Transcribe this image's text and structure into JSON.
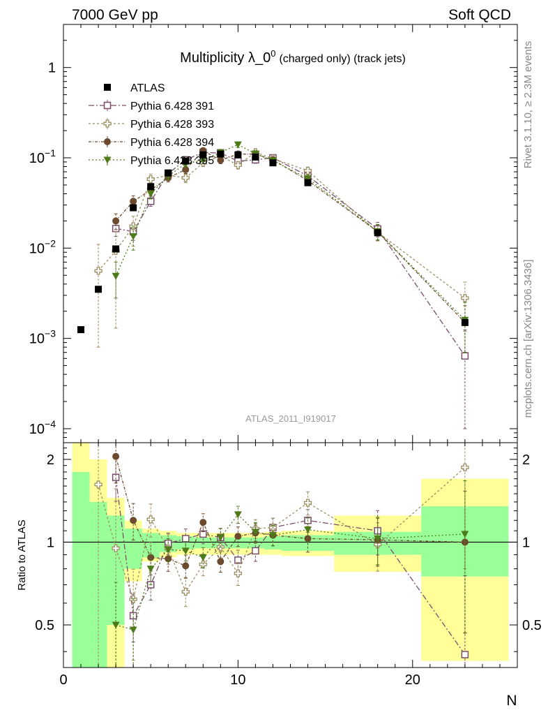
{
  "header": {
    "left": "7000 GeV pp",
    "right": "Soft QCD"
  },
  "title": "Multiplicity λ_0",
  "title_sup": "0",
  "title_suffix": "(charged only) (track jets)",
  "watermark": "ATLAS_2011_I919017",
  "side_top": "Rivet 3.1.10, ≥ 2.3M events",
  "side_bottom": "mcplots.cern.ch [arXiv:1306.3436]",
  "ratio_ylabel": "Ratio to ATLAS",
  "xlabel": "N",
  "colors": {
    "atlas": "#000000",
    "p391": "#7a4d6b",
    "p393": "#9a8d60",
    "p394": "#6b4a2e",
    "p395": "#4e7a1a",
    "band_inner": "#99ff99",
    "band_outer": "#ffff99"
  },
  "chart_data": {
    "type": "scatter",
    "xlim": [
      0,
      26
    ],
    "ylim_main": [
      7e-05,
      3
    ],
    "ylim_ratio": [
      0.35,
      2.3
    ],
    "log_y_main": true,
    "log_y_ratio": true,
    "x_ticks": [
      0,
      10,
      20
    ],
    "y_ticks_main": [
      {
        "value": 0.0001,
        "label": "10",
        "exp": "−4"
      },
      {
        "value": 0.001,
        "label": "10",
        "exp": "−3"
      },
      {
        "value": 0.01,
        "label": "10",
        "exp": "−2"
      },
      {
        "value": 0.1,
        "label": "10",
        "exp": "−1"
      },
      {
        "value": 1,
        "label": "1",
        "exp": ""
      }
    ],
    "y_ticks_ratio": [
      {
        "value": 0.5,
        "label": "0.5"
      },
      {
        "value": 1,
        "label": "1"
      },
      {
        "value": 2,
        "label": "2"
      }
    ],
    "legend": {
      "placement": "top-left"
    },
    "atlas": {
      "name": "ATLAS",
      "x": [
        1,
        2,
        3,
        4,
        5,
        6,
        7,
        8,
        9,
        10,
        11,
        12,
        14,
        18,
        23
      ],
      "y": [
        0.00125,
        0.0035,
        0.0098,
        0.028,
        0.048,
        0.068,
        0.092,
        0.108,
        0.11,
        0.108,
        0.102,
        0.088,
        0.053,
        0.0148,
        0.0015
      ],
      "bins": [
        [
          0.5,
          1.5
        ],
        [
          1.5,
          2.5
        ],
        [
          2.5,
          3.5
        ],
        [
          3.5,
          4.5
        ],
        [
          4.5,
          5.5
        ],
        [
          5.5,
          6.5
        ],
        [
          6.5,
          7.5
        ],
        [
          7.5,
          8.5
        ],
        [
          8.5,
          9.5
        ],
        [
          9.5,
          10.5
        ],
        [
          10.5,
          11.5
        ],
        [
          11.5,
          12.5
        ],
        [
          12.5,
          15.5
        ],
        [
          15.5,
          20.5
        ],
        [
          20.5,
          25.5
        ]
      ],
      "band_inner": [
        [
          0.12,
          1.8
        ],
        [
          0.25,
          1.4
        ],
        [
          0.5,
          1.25
        ],
        [
          0.8,
          1.12
        ],
        [
          0.88,
          1.08
        ],
        [
          0.92,
          1.06
        ],
        [
          0.94,
          1.05
        ],
        [
          0.95,
          1.04
        ],
        [
          0.95,
          1.04
        ],
        [
          0.95,
          1.04
        ],
        [
          0.95,
          1.04
        ],
        [
          0.94,
          1.05
        ],
        [
          0.93,
          1.06
        ],
        [
          0.9,
          1.09
        ],
        [
          0.75,
          1.35
        ]
      ],
      "band_outer": [
        [
          0.05,
          2.7
        ],
        [
          0.1,
          2.0
        ],
        [
          0.35,
          1.45
        ],
        [
          0.72,
          1.2
        ],
        [
          0.85,
          1.12
        ],
        [
          0.88,
          1.1
        ],
        [
          0.9,
          1.08
        ],
        [
          0.9,
          1.08
        ],
        [
          0.9,
          1.08
        ],
        [
          0.9,
          1.08
        ],
        [
          0.9,
          1.08
        ],
        [
          0.9,
          1.09
        ],
        [
          0.89,
          1.1
        ],
        [
          0.78,
          1.25
        ],
        [
          0.37,
          1.7
        ]
      ]
    },
    "series": [
      {
        "name": "Pythia 6.428 391",
        "marker": "open-square",
        "dash": "8,3,2,3",
        "x": [
          3,
          4,
          5,
          6,
          7,
          8,
          9,
          10,
          11,
          12,
          14,
          18,
          23
        ],
        "y": [
          0.0165,
          0.0152,
          0.033,
          0.067,
          0.095,
          0.115,
          0.113,
          0.092,
          0.095,
          0.1,
          0.063,
          0.0163,
          0.00064
        ],
        "err_lo": [
          0.003,
          0.003,
          0.004,
          0.006,
          0.008,
          0.009,
          0.009,
          0.008,
          0.008,
          0.008,
          0.006,
          0.003,
          0.00054
        ],
        "err_hi": [
          0.003,
          0.003,
          0.004,
          0.006,
          0.008,
          0.009,
          0.009,
          0.008,
          0.008,
          0.008,
          0.006,
          0.003,
          0.0006
        ],
        "ratio": [
          1.72,
          0.54,
          0.7,
          0.99,
          1.03,
          1.07,
          1.04,
          0.86,
          0.93,
          1.13,
          1.2,
          1.1,
          0.39
        ]
      },
      {
        "name": "Pythia 6.428 393",
        "marker": "open-cross",
        "dash": "3,3",
        "x": [
          2,
          3,
          4,
          5,
          6,
          7,
          8,
          9,
          10,
          11,
          12,
          14,
          18,
          23
        ],
        "y": [
          0.0056,
          0.0093,
          0.0175,
          0.058,
          0.064,
          0.06,
          0.088,
          0.105,
          0.083,
          0.115,
          0.098,
          0.072,
          0.015,
          0.0028
        ],
        "err_lo": [
          0.0048,
          0.008,
          0.007,
          0.008,
          0.008,
          0.007,
          0.008,
          0.009,
          0.008,
          0.009,
          0.008,
          0.007,
          0.003,
          0.0016
        ],
        "err_hi": [
          0.0054,
          0.006,
          0.005,
          0.008,
          0.008,
          0.007,
          0.008,
          0.009,
          0.008,
          0.009,
          0.008,
          0.007,
          0.003,
          0.0014
        ],
        "ratio": [
          1.62,
          0.95,
          0.62,
          1.21,
          0.95,
          0.66,
          0.83,
          0.96,
          0.77,
          1.12,
          1.13,
          1.39,
          0.98,
          1.87
        ]
      },
      {
        "name": "Pythia 6.428 394",
        "marker": "filled-circle",
        "dash": "4,2,1,2",
        "x": [
          3,
          4,
          5,
          6,
          7,
          8,
          9,
          10,
          11,
          12,
          14,
          18,
          23
        ],
        "y": [
          0.02,
          0.033,
          0.044,
          0.06,
          0.074,
          0.12,
          0.094,
          0.11,
          0.11,
          0.095,
          0.056,
          0.0152,
          0.0015
        ],
        "err_lo": [
          0.004,
          0.005,
          0.006,
          0.006,
          0.007,
          0.009,
          0.008,
          0.009,
          0.009,
          0.008,
          0.006,
          0.003,
          0.0008
        ],
        "err_hi": [
          0.004,
          0.005,
          0.006,
          0.006,
          0.007,
          0.009,
          0.008,
          0.009,
          0.009,
          0.008,
          0.006,
          0.003,
          0.0008
        ],
        "ratio": [
          2.05,
          1.2,
          0.88,
          0.87,
          0.82,
          1.18,
          0.85,
          1.05,
          1.08,
          1.06,
          1.03,
          1.02,
          1.0
        ]
      },
      {
        "name": "Pythia 6.428 395",
        "marker": "filled-triangle-down",
        "dash": "2,3",
        "x": [
          3,
          4,
          5,
          6,
          7,
          8,
          9,
          10,
          11,
          12,
          14,
          18,
          23
        ],
        "y": [
          0.0049,
          0.0135,
          0.04,
          0.063,
          0.086,
          0.094,
          0.115,
          0.14,
          0.111,
          0.093,
          0.059,
          0.0153,
          0.0016
        ],
        "err_lo": [
          0.0021,
          0.004,
          0.005,
          0.006,
          0.007,
          0.008,
          0.009,
          0.01,
          0.009,
          0.008,
          0.006,
          0.003,
          0.0009
        ],
        "err_hi": [
          0.0021,
          0.004,
          0.005,
          0.006,
          0.007,
          0.008,
          0.009,
          0.01,
          0.009,
          0.008,
          0.006,
          0.003,
          0.0009
        ],
        "ratio": [
          0.5,
          0.48,
          0.8,
          0.94,
          0.93,
          0.88,
          1.04,
          1.26,
          1.09,
          1.06,
          1.11,
          1.03,
          1.07
        ]
      }
    ]
  }
}
